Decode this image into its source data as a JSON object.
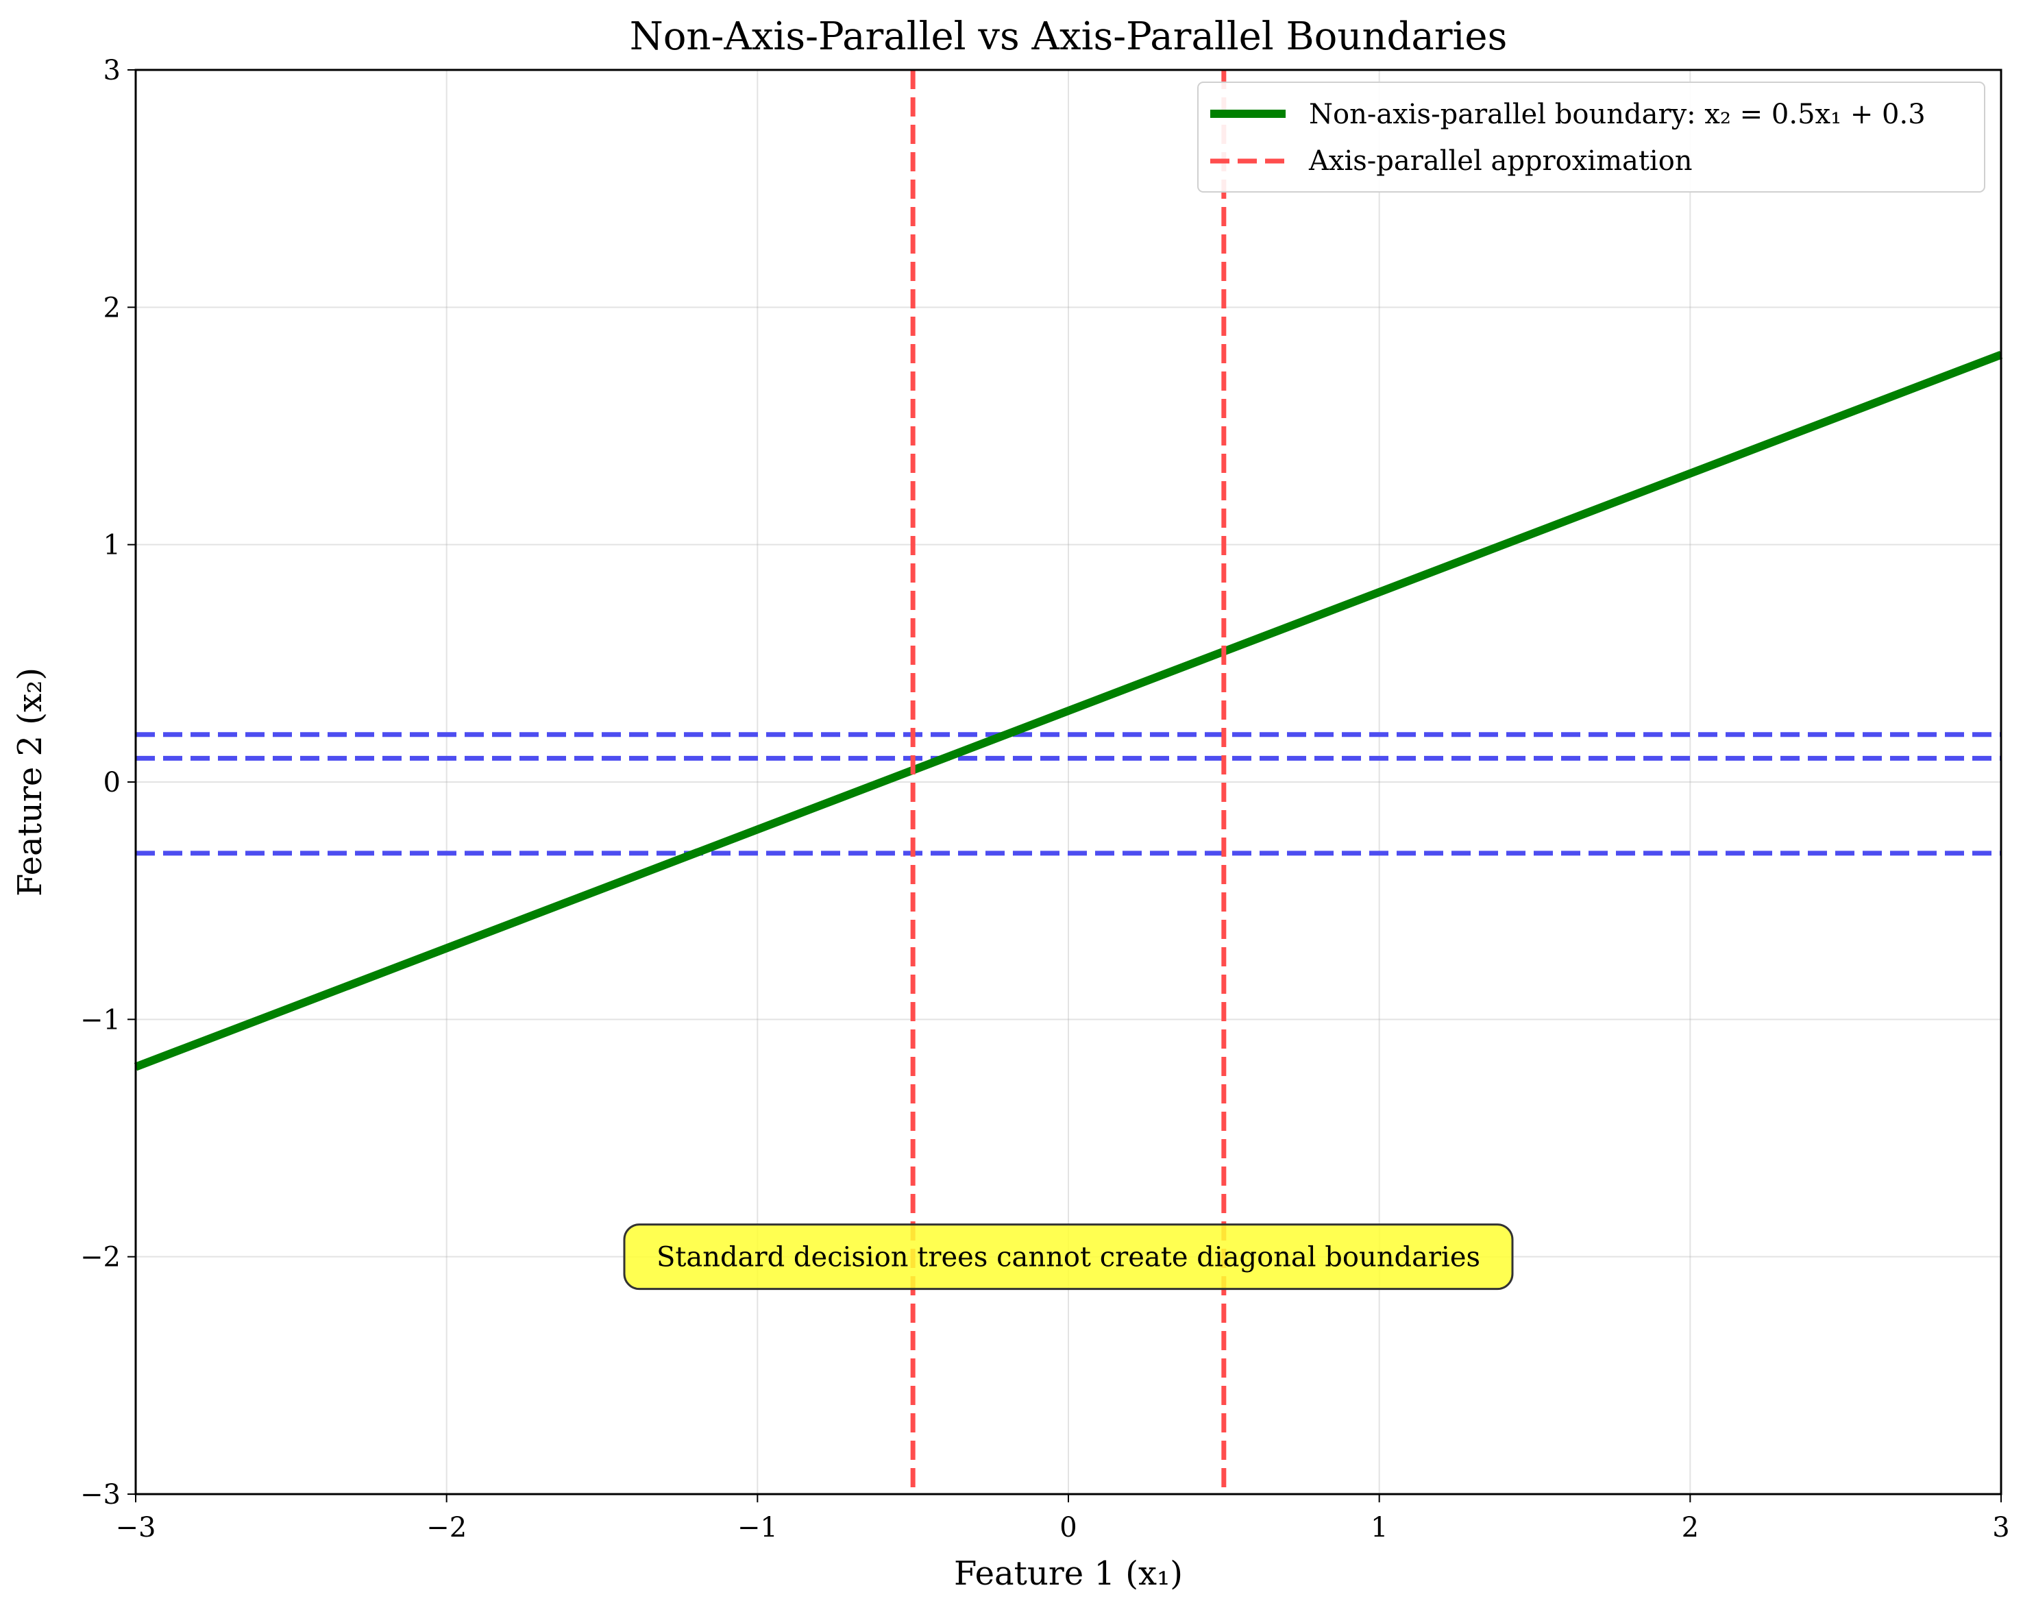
{
  "chart_data": {
    "type": "line",
    "title": "Non-Axis-Parallel vs Axis-Parallel Boundaries",
    "xlabel": "Feature 1 (x₁)",
    "ylabel": "Feature 2 (x₂)",
    "xlim": [
      -3,
      3
    ],
    "ylim": [
      -3,
      3
    ],
    "grid": true,
    "legend_position": "top-right",
    "x_ticks": [
      -3,
      -2,
      -1,
      0,
      1,
      2,
      3
    ],
    "y_ticks": [
      -3,
      -2,
      -1,
      0,
      1,
      2,
      3
    ],
    "x_tick_labels": [
      "−3",
      "−2",
      "−1",
      "0",
      "1",
      "2",
      "3"
    ],
    "y_tick_labels": [
      "−3",
      "−2",
      "−1",
      "0",
      "1",
      "2",
      "3"
    ],
    "series": [
      {
        "name": "Non-axis-parallel boundary: x₂ = 0.5x₁ + 0.3",
        "style": "solid",
        "color": "#008000",
        "x": [
          -3,
          3
        ],
        "y": [
          -1.2,
          1.8
        ]
      },
      {
        "name": "Axis-parallel approximation",
        "style": "dashed",
        "color": "#ff4d4d",
        "vertical_lines_x": [
          -0.5,
          0.5
        ]
      },
      {
        "style": "dashed",
        "color": "#4d4df0",
        "horizontal_lines_y": [
          0.2,
          0.1,
          -0.3
        ]
      }
    ],
    "annotations": [
      {
        "text": "Standard decision trees cannot create diagonal boundaries",
        "x": 0,
        "y": -2,
        "background": "#ffff33"
      }
    ]
  }
}
